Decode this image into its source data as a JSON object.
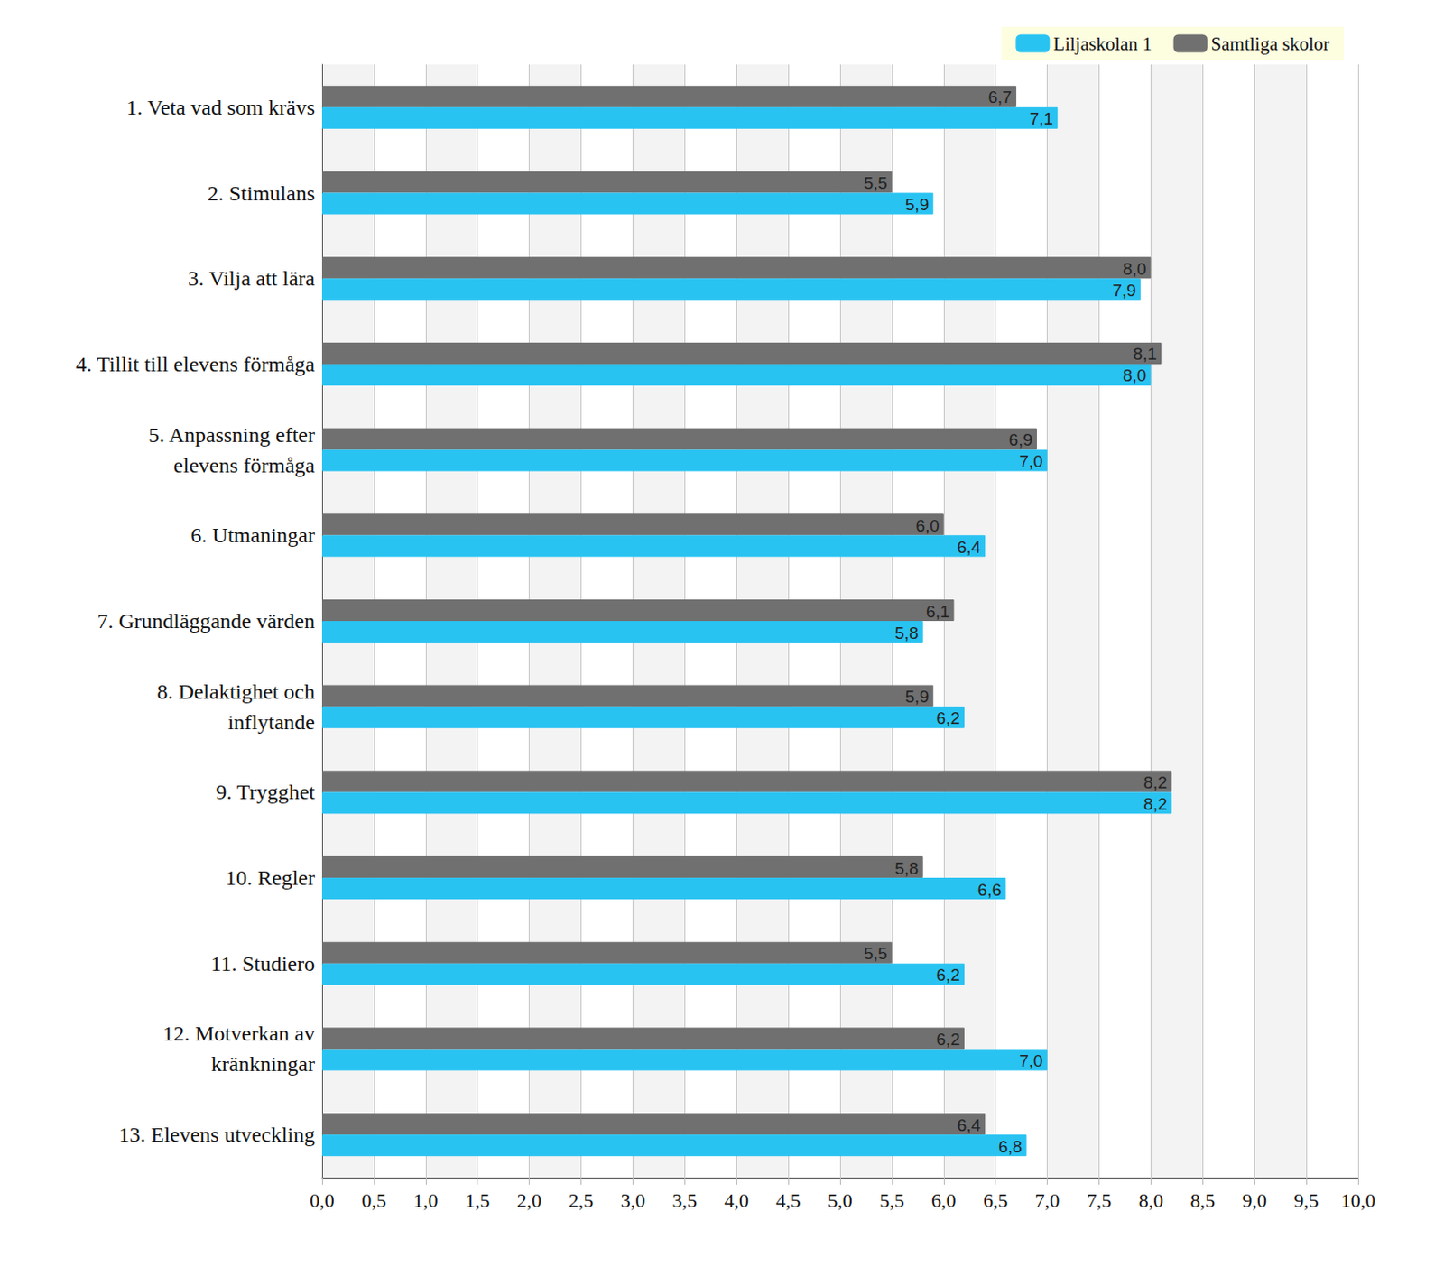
{
  "chart_data": {
    "type": "bar",
    "orientation": "horizontal",
    "data_labels": true,
    "grid": true,
    "legend": "top-right",
    "categories": [
      "1. Veta vad som krävs",
      "2. Stimulans",
      "3. Vilja att lära",
      "4. Tillit till elevens förmåga",
      "5. Anpassning efter\nelevens förmåga",
      "6. Utmaningar",
      "7. Grundläggande värden",
      "8. Delaktighet och\ninflytande",
      "9. Trygghet",
      "10. Regler",
      "11. Studiero",
      "12. Motverkan av\nkränkningar",
      "13. Elevens utveckling"
    ],
    "series": [
      {
        "name": "Liljaskolan 1",
        "color": "#29c3f2",
        "values": [
          7.1,
          5.9,
          7.9,
          8.0,
          7.0,
          6.4,
          5.8,
          6.2,
          8.2,
          6.6,
          6.2,
          7.0,
          6.8
        ],
        "value_labels": [
          "7,1",
          "5,9",
          "7,9",
          "8,0",
          "7,0",
          "6,4",
          "5,8",
          "6,2",
          "8,2",
          "6,6",
          "6,2",
          "7,0",
          "6,8"
        ]
      },
      {
        "name": "Samtliga skolor",
        "color": "#707070",
        "values": [
          6.7,
          5.5,
          8.0,
          8.1,
          6.9,
          6.0,
          6.1,
          5.9,
          8.2,
          5.8,
          5.5,
          6.2,
          6.4
        ],
        "value_labels": [
          "6,7",
          "5,5",
          "8,0",
          "8,1",
          "6,9",
          "6,0",
          "6,1",
          "5,9",
          "8,2",
          "5,8",
          "5,5",
          "6,2",
          "6,4"
        ]
      }
    ],
    "xlim": [
      0,
      10
    ],
    "xticks": [
      {
        "value": 0,
        "label": "0,0"
      },
      {
        "value": 0.5,
        "label": "0,5"
      },
      {
        "value": 1,
        "label": "1,0"
      },
      {
        "value": 1.5,
        "label": "1,5"
      },
      {
        "value": 2,
        "label": "2,0"
      },
      {
        "value": 2.5,
        "label": "2,5"
      },
      {
        "value": 3,
        "label": "3,0"
      },
      {
        "value": 3.5,
        "label": "3,5"
      },
      {
        "value": 4,
        "label": "4,0"
      },
      {
        "value": 4.5,
        "label": "4,5"
      },
      {
        "value": 5,
        "label": "5,0"
      },
      {
        "value": 5.5,
        "label": "5,5"
      },
      {
        "value": 6,
        "label": "6,0"
      },
      {
        "value": 6.5,
        "label": "6,5"
      },
      {
        "value": 7,
        "label": "7,0"
      },
      {
        "value": 7.5,
        "label": "7,5"
      },
      {
        "value": 8,
        "label": "8,0"
      },
      {
        "value": 8.5,
        "label": "8,5"
      },
      {
        "value": 9,
        "label": "9,0"
      },
      {
        "value": 9.5,
        "label": "9,5"
      },
      {
        "value": 10,
        "label": "10,0"
      }
    ]
  }
}
